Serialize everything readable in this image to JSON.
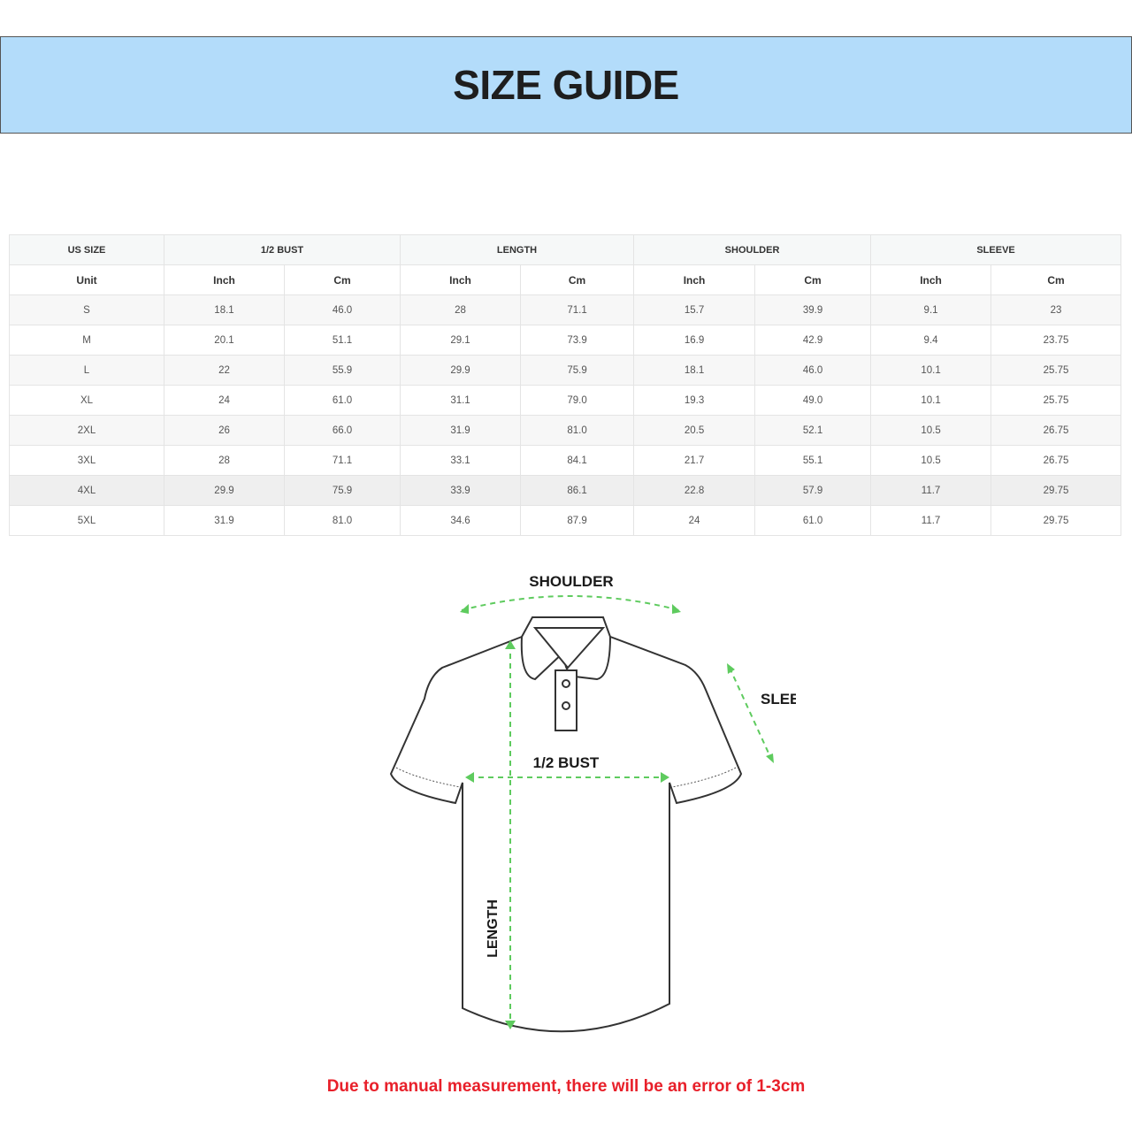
{
  "title": "SIZE GUIDE",
  "table": {
    "groups": [
      "US SIZE",
      "1/2 BUST",
      "LENGTH",
      "SHOULDER",
      "SLEEVE"
    ],
    "units": [
      "Unit",
      "Inch",
      "Cm",
      "Inch",
      "Cm",
      "Inch",
      "Cm",
      "Inch",
      "Cm"
    ],
    "rows": [
      [
        "S",
        "18.1",
        "46.0",
        "28",
        "71.1",
        "15.7",
        "39.9",
        "9.1",
        "23"
      ],
      [
        "M",
        "20.1",
        "51.1",
        "29.1",
        "73.9",
        "16.9",
        "42.9",
        "9.4",
        "23.75"
      ],
      [
        "L",
        "22",
        "55.9",
        "29.9",
        "75.9",
        "18.1",
        "46.0",
        "10.1",
        "25.75"
      ],
      [
        "XL",
        "24",
        "61.0",
        "31.1",
        "79.0",
        "19.3",
        "49.0",
        "10.1",
        "25.75"
      ],
      [
        "2XL",
        "26",
        "66.0",
        "31.9",
        "81.0",
        "20.5",
        "52.1",
        "10.5",
        "26.75"
      ],
      [
        "3XL",
        "28",
        "71.1",
        "33.1",
        "84.1",
        "21.7",
        "55.1",
        "10.5",
        "26.75"
      ],
      [
        "4XL",
        "29.9",
        "75.9",
        "33.9",
        "86.1",
        "22.8",
        "57.9",
        "11.7",
        "29.75"
      ],
      [
        "5XL",
        "31.9",
        "81.0",
        "34.6",
        "87.9",
        "24",
        "61.0",
        "11.7",
        "29.75"
      ]
    ]
  },
  "diagram": {
    "shoulder": "SHOULDER",
    "sleeve": "SLEEVE",
    "bust": "1/2 BUST",
    "length": "LENGTH",
    "arrow_color": "#5ecb5e"
  },
  "note": "Due to manual measurement, there will be an error of 1-3cm",
  "note_color": "#e8202a"
}
